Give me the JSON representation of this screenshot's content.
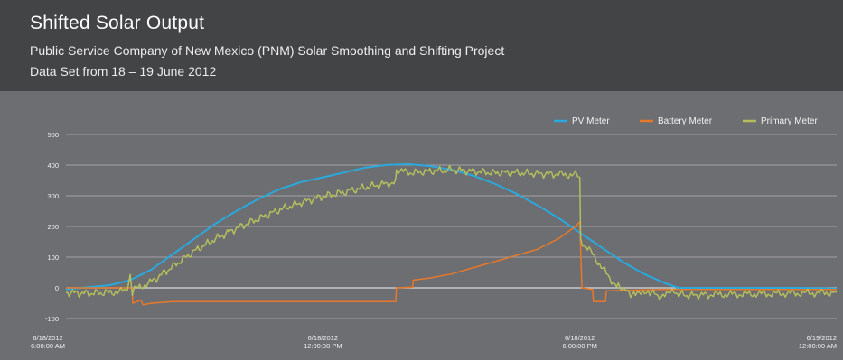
{
  "header": {
    "title": "Shifted Solar Output",
    "subtitle": "Public Service Company of New Mexico (PNM) Solar Smoothing and Shifting Project",
    "dataset": "Data Set from 18 – 19 June 2012"
  },
  "colors": {
    "header_bg": "#434446",
    "plot_bg": "#6d6e71",
    "grid": "#b5b6b8",
    "zero_line": "#d8d9da"
  },
  "chart_data": {
    "type": "line",
    "title": "Shifted Solar Output",
    "xlabel": "",
    "ylabel": "",
    "ylim": [
      -100,
      500
    ],
    "yticks": [
      -100,
      0,
      100,
      200,
      300,
      400,
      500
    ],
    "xlim_hours": [
      0,
      18
    ],
    "xticks": [
      {
        "hours": 0,
        "line1": "6/18/2012",
        "line2": "6:00:00 AM"
      },
      {
        "hours": 6,
        "line1": "6/18/2012",
        "line2": "12:00:00 PM"
      },
      {
        "hours": 12,
        "line1": "6/18/2012",
        "line2": "6:00:00 PM"
      },
      {
        "hours": 18,
        "line1": "6/19/2012",
        "line2": "12:00:00 AM"
      }
    ],
    "grid": true,
    "legend": "top-right",
    "x_unit": "hours since 6/18/2012 6:00:00 AM",
    "series": [
      {
        "name": "PV Meter",
        "color": "#29a9de",
        "points": [
          [
            0,
            -5
          ],
          [
            0.5,
            2
          ],
          [
            1,
            8
          ],
          [
            1.5,
            25
          ],
          [
            2,
            60
          ],
          [
            2.5,
            110
          ],
          [
            3,
            160
          ],
          [
            3.5,
            210
          ],
          [
            4,
            252
          ],
          [
            4.5,
            290
          ],
          [
            5,
            322
          ],
          [
            5.5,
            345
          ],
          [
            6,
            360
          ],
          [
            6.5,
            376
          ],
          [
            7,
            392
          ],
          [
            7.5,
            401
          ],
          [
            8,
            403
          ],
          [
            8.5,
            397
          ],
          [
            9,
            385
          ],
          [
            9.5,
            366
          ],
          [
            10,
            340
          ],
          [
            10.5,
            308
          ],
          [
            11,
            270
          ],
          [
            11.5,
            228
          ],
          [
            12,
            180
          ],
          [
            12.5,
            132
          ],
          [
            13,
            85
          ],
          [
            13.5,
            45
          ],
          [
            14,
            15
          ],
          [
            14.3,
            0
          ],
          [
            15,
            0
          ],
          [
            16,
            0
          ],
          [
            17,
            0
          ],
          [
            18,
            -2
          ]
        ]
      },
      {
        "name": "Battery Meter",
        "color": "#e8782a",
        "points": [
          [
            0,
            0
          ],
          [
            1.55,
            0
          ],
          [
            1.56,
            -50
          ],
          [
            1.75,
            -40
          ],
          [
            1.8,
            -55
          ],
          [
            2,
            -50
          ],
          [
            2.5,
            -45
          ],
          [
            3,
            -45
          ],
          [
            4,
            -45
          ],
          [
            5,
            -45
          ],
          [
            6,
            -45
          ],
          [
            7,
            -45
          ],
          [
            7.7,
            -45
          ],
          [
            7.72,
            0
          ],
          [
            8.1,
            2
          ],
          [
            8.11,
            25
          ],
          [
            8.5,
            32
          ],
          [
            9,
            45
          ],
          [
            9.5,
            65
          ],
          [
            10,
            85
          ],
          [
            10.5,
            105
          ],
          [
            11,
            125
          ],
          [
            11.5,
            160
          ],
          [
            11.9,
            200
          ],
          [
            12,
            215
          ],
          [
            12.05,
            0
          ],
          [
            12.3,
            -5
          ],
          [
            12.32,
            -45
          ],
          [
            12.6,
            -45
          ],
          [
            12.62,
            -10
          ],
          [
            13,
            -8
          ],
          [
            14,
            -5
          ],
          [
            15,
            -5
          ],
          [
            16,
            -5
          ],
          [
            17,
            -5
          ],
          [
            18,
            -5
          ]
        ]
      },
      {
        "name": "Primary Meter",
        "color": "#b4be5c",
        "points": [
          [
            0,
            -15
          ],
          [
            0.5,
            -18
          ],
          [
            1,
            -15
          ],
          [
            1.4,
            -10
          ],
          [
            1.5,
            30
          ],
          [
            1.55,
            -25
          ],
          [
            1.6,
            -5
          ],
          [
            2,
            20
          ],
          [
            2.5,
            70
          ],
          [
            3,
            120
          ],
          [
            3.5,
            160
          ],
          [
            4,
            195
          ],
          [
            4.5,
            225
          ],
          [
            5,
            255
          ],
          [
            5.5,
            278
          ],
          [
            6,
            298
          ],
          [
            6.5,
            312
          ],
          [
            7,
            328
          ],
          [
            7.5,
            340
          ],
          [
            7.7,
            345
          ],
          [
            7.72,
            385
          ],
          [
            8,
            375
          ],
          [
            8.5,
            380
          ],
          [
            9,
            385
          ],
          [
            9.5,
            380
          ],
          [
            10,
            375
          ],
          [
            10.5,
            375
          ],
          [
            11,
            372
          ],
          [
            11.5,
            370
          ],
          [
            11.9,
            368
          ],
          [
            12,
            360
          ],
          [
            12.02,
            160
          ],
          [
            12.1,
            140
          ],
          [
            12.3,
            110
          ],
          [
            12.5,
            70
          ],
          [
            12.7,
            30
          ],
          [
            12.9,
            5
          ],
          [
            13,
            -5
          ],
          [
            13.3,
            -25
          ],
          [
            13.6,
            -10
          ],
          [
            13.9,
            -30
          ],
          [
            14.2,
            -15
          ],
          [
            14.5,
            -25
          ],
          [
            15,
            -22
          ],
          [
            16,
            -20
          ],
          [
            17,
            -18
          ],
          [
            18,
            -15
          ]
        ]
      }
    ]
  }
}
